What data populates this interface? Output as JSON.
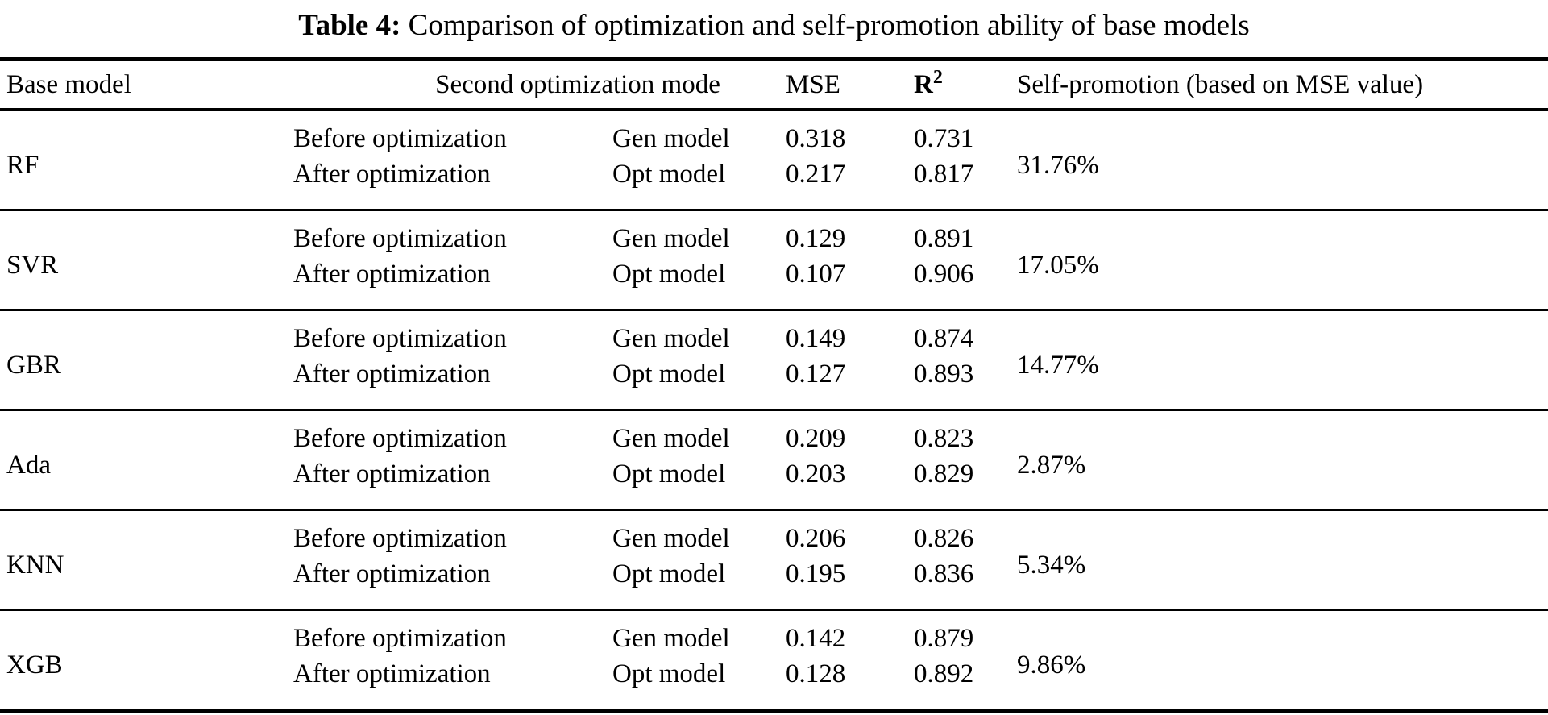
{
  "colors": {
    "background": "#ffffff",
    "text": "#000000",
    "rule": "#000000"
  },
  "title": {
    "label": "Table 4:",
    "text": "Comparison of optimization and self-promotion ability of base models"
  },
  "table": {
    "headers": {
      "base_model": "Base model",
      "second_opt_mode": "Second optimization mode",
      "mse": "MSE",
      "r2_base": "R",
      "r2_sup": "2",
      "self_promotion": "Self-promotion (based on MSE value)"
    },
    "groups": [
      {
        "base_model": "RF",
        "self_promotion": "31.76%",
        "rows": [
          {
            "mode": "Before optimization",
            "model": "Gen model",
            "mse": "0.318",
            "r2": "0.731"
          },
          {
            "mode": "After optimization",
            "model": "Opt model",
            "mse": "0.217",
            "r2": "0.817"
          }
        ]
      },
      {
        "base_model": "SVR",
        "self_promotion": "17.05%",
        "rows": [
          {
            "mode": "Before optimization",
            "model": "Gen model",
            "mse": "0.129",
            "r2": "0.891"
          },
          {
            "mode": "After optimization",
            "model": "Opt model",
            "mse": "0.107",
            "r2": "0.906"
          }
        ]
      },
      {
        "base_model": "GBR",
        "self_promotion": "14.77%",
        "rows": [
          {
            "mode": "Before optimization",
            "model": "Gen model",
            "mse": "0.149",
            "r2": "0.874"
          },
          {
            "mode": "After optimization",
            "model": "Opt model",
            "mse": "0.127",
            "r2": "0.893"
          }
        ]
      },
      {
        "base_model": "Ada",
        "self_promotion": "2.87%",
        "rows": [
          {
            "mode": "Before optimization",
            "model": "Gen model",
            "mse": "0.209",
            "r2": "0.823"
          },
          {
            "mode": "After optimization",
            "model": "Opt model",
            "mse": "0.203",
            "r2": "0.829"
          }
        ]
      },
      {
        "base_model": "KNN",
        "self_promotion": "5.34%",
        "rows": [
          {
            "mode": "Before optimization",
            "model": "Gen model",
            "mse": "0.206",
            "r2": "0.826"
          },
          {
            "mode": "After optimization",
            "model": "Opt model",
            "mse": "0.195",
            "r2": "0.836"
          }
        ]
      },
      {
        "base_model": "XGB",
        "self_promotion": "9.86%",
        "rows": [
          {
            "mode": "Before optimization",
            "model": "Gen model",
            "mse": "0.142",
            "r2": "0.879"
          },
          {
            "mode": "After optimization",
            "model": "Opt model",
            "mse": "0.128",
            "r2": "0.892"
          }
        ]
      }
    ]
  }
}
